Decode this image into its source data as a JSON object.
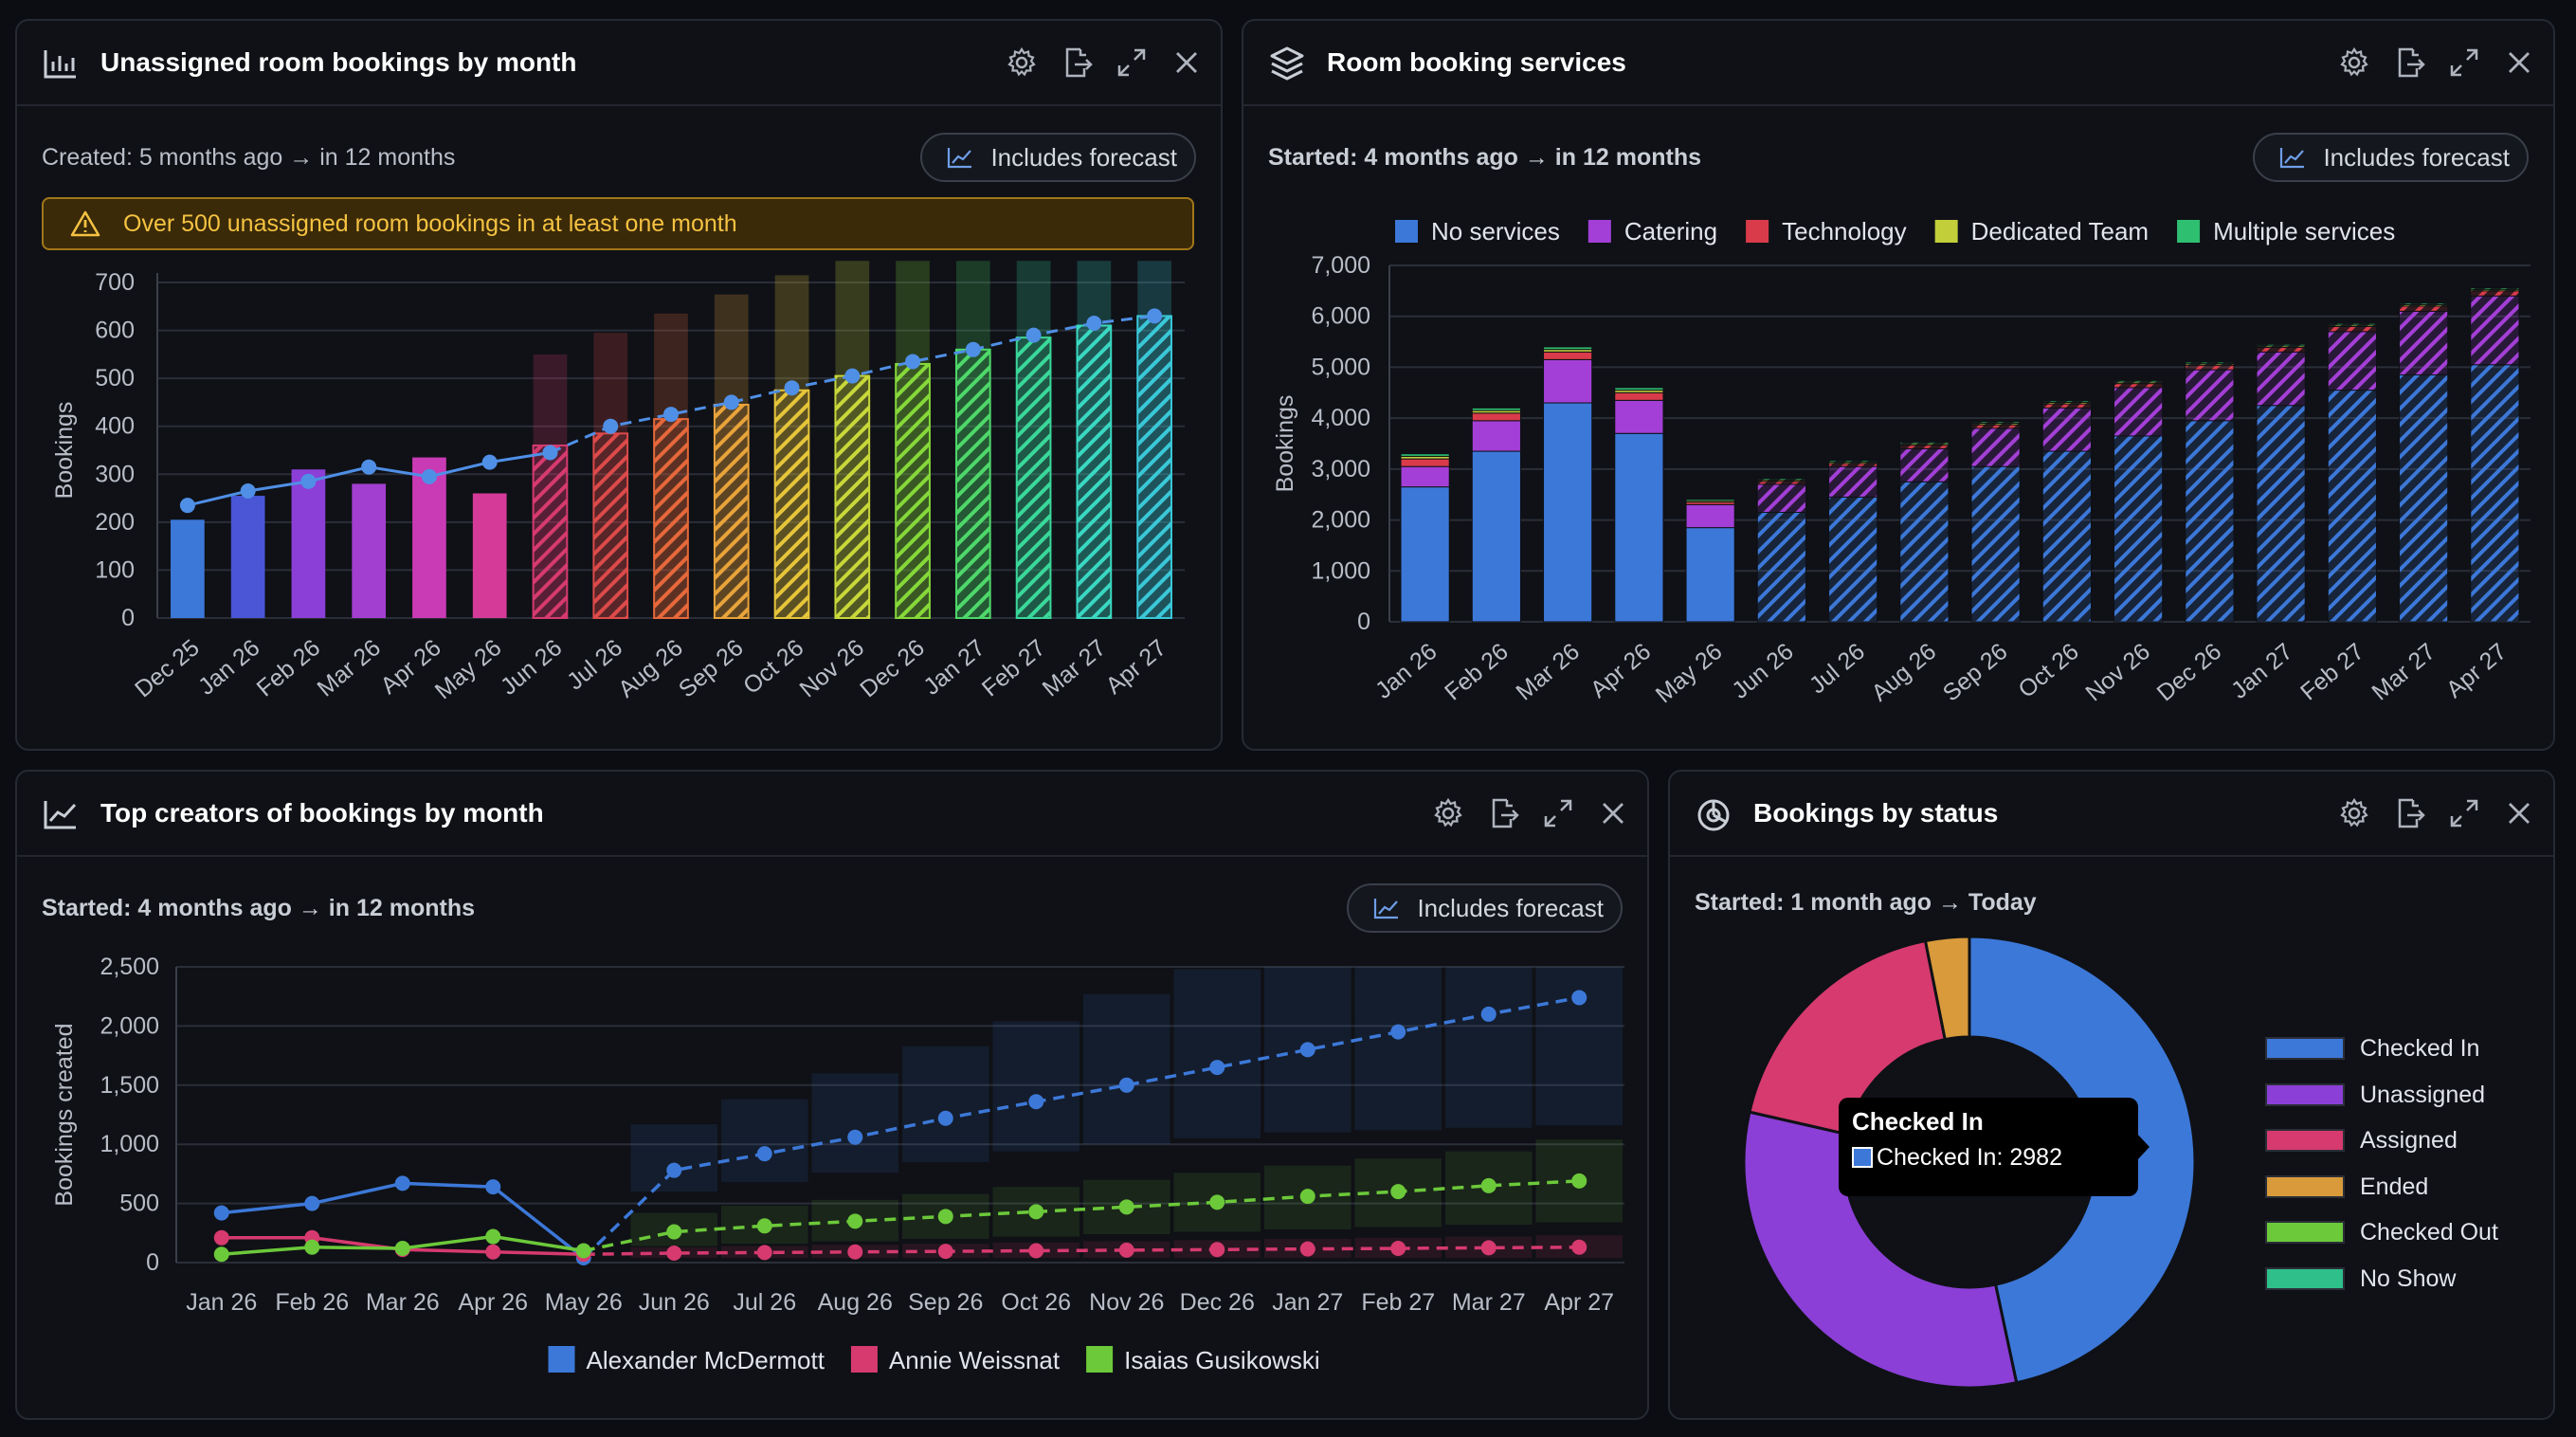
{
  "colors": {
    "panel": "#0f1116",
    "grid": "#2a2e38",
    "axis": "#b8bdc7",
    "forecast_line": "#4f8fe6",
    "warning_text": "#f5c242"
  },
  "icons": {
    "panel_actions": [
      "gear-icon",
      "export-icon",
      "expand-icon",
      "close-icon"
    ],
    "badge": "trend-line-icon",
    "warning": "warning-triangle-icon"
  },
  "panels": {
    "unassigned": {
      "title": "Unassigned room bookings by month",
      "subtitle": "Created: 5 months ago → in 12 months",
      "badge": "Includes forecast",
      "warning": "Over 500 unassigned room bookings in at least one month"
    },
    "services": {
      "title": "Room booking services",
      "subtitle": "Started: 4 months ago → in 12 months",
      "badge": "Includes forecast"
    },
    "creators": {
      "title": "Top creators of bookings by month",
      "subtitle": "Started: 4 months ago → in 12 months",
      "badge": "Includes forecast"
    },
    "status": {
      "title": "Bookings by status",
      "subtitle": "Started: 1 month ago → Today",
      "tooltip": {
        "title": "Checked In",
        "body": "Checked In: 2982"
      }
    }
  },
  "chart_data": [
    {
      "id": "unassigned",
      "type": "bar",
      "ylabel": "Bookings",
      "ylim": [
        0,
        700
      ],
      "yticks": [
        0,
        100,
        200,
        300,
        400,
        500,
        600,
        700
      ],
      "yticks_text": [
        "0",
        "100",
        "200",
        "300",
        "400",
        "500",
        "600",
        "700"
      ],
      "categories": [
        "Dec 25",
        "Jan 26",
        "Feb 26",
        "Mar 26",
        "Apr 26",
        "May 26",
        "Jun 26",
        "Jul 26",
        "Aug 26",
        "Sep 26",
        "Oct 26",
        "Nov 26",
        "Dec 26",
        "Jan 27",
        "Feb 27",
        "Mar 27",
        "Apr 27"
      ],
      "values": [
        205,
        255,
        310,
        280,
        335,
        260,
        360,
        385,
        415,
        445,
        475,
        505,
        530,
        560,
        585,
        610,
        630
      ],
      "forecast_from_index": 6,
      "forecast_upper": [
        null,
        null,
        null,
        null,
        null,
        null,
        550,
        595,
        635,
        675,
        715,
        745,
        745,
        745,
        745,
        745,
        745
      ],
      "trend": [
        235,
        265,
        285,
        315,
        295,
        325,
        345,
        400,
        425,
        450,
        480,
        505,
        535,
        560,
        590,
        615,
        630
      ],
      "bar_colors": [
        "#3c78d8",
        "#4a56d6",
        "#8b3fd6",
        "#a23fd0",
        "#c93ab5",
        "#d63a98",
        "#d63a6e",
        "#dc4a4a",
        "#e6683a",
        "#e8a33a",
        "#e6c53a",
        "#c8d83a",
        "#86d83a",
        "#4ed86a",
        "#3ad89a",
        "#3ad8c2",
        "#3ac8d8"
      ]
    },
    {
      "id": "services",
      "type": "bar",
      "stacked": true,
      "ylabel": "Bookings",
      "ylim": [
        0,
        7000
      ],
      "yticks": [
        0,
        1000,
        2000,
        3000,
        4000,
        5000,
        6000,
        7000
      ],
      "yticks_text": [
        "0",
        "1,000",
        "2,000",
        "3,000",
        "4,000",
        "5,000",
        "6,000",
        "7,000"
      ],
      "legend_position": "top",
      "categories": [
        "Jan 26",
        "Feb 26",
        "Mar 26",
        "Apr 26",
        "May 26",
        "Jun 26",
        "Jul 26",
        "Aug 26",
        "Sep 26",
        "Oct 26",
        "Nov 26",
        "Dec 26",
        "Jan 27",
        "Feb 27",
        "Mar 27",
        "Apr 27"
      ],
      "forecast_from_index": 5,
      "series": [
        {
          "name": "No services",
          "color": "#3c78d8",
          "values": [
            2650,
            3350,
            4300,
            3700,
            1850,
            2150,
            2450,
            2750,
            3050,
            3350,
            3650,
            3950,
            4250,
            4550,
            4850,
            5050
          ]
        },
        {
          "name": "Catering",
          "color": "#a33fd6",
          "values": [
            400,
            600,
            850,
            650,
            450,
            550,
            600,
            650,
            750,
            850,
            950,
            1000,
            1050,
            1150,
            1250,
            1350
          ]
        },
        {
          "name": "Technology",
          "color": "#d93b4a",
          "values": [
            150,
            150,
            150,
            150,
            50,
            60,
            60,
            70,
            70,
            80,
            80,
            90,
            90,
            100,
            100,
            100
          ]
        },
        {
          "name": "Dedicated Team",
          "color": "#c2cf3a",
          "values": [
            50,
            50,
            50,
            50,
            30,
            30,
            30,
            30,
            30,
            30,
            30,
            30,
            30,
            30,
            30,
            30
          ]
        },
        {
          "name": "Multiple services",
          "color": "#2fbf71",
          "values": [
            50,
            50,
            50,
            50,
            30,
            30,
            30,
            30,
            30,
            30,
            30,
            30,
            30,
            30,
            30,
            30
          ]
        }
      ]
    },
    {
      "id": "creators",
      "type": "line",
      "ylabel": "Bookings created",
      "ylim": [
        0,
        2500
      ],
      "yticks": [
        0,
        500,
        1000,
        1500,
        2000,
        2500
      ],
      "yticks_text": [
        "0",
        "500",
        "1,000",
        "1,500",
        "2,000",
        "2,500"
      ],
      "legend_position": "bottom",
      "categories": [
        "Jan 26",
        "Feb 26",
        "Mar 26",
        "Apr 26",
        "May 26",
        "Jun 26",
        "Jul 26",
        "Aug 26",
        "Sep 26",
        "Oct 26",
        "Nov 26",
        "Dec 26",
        "Jan 27",
        "Feb 27",
        "Mar 27",
        "Apr 27"
      ],
      "forecast_from_index": 4,
      "series": [
        {
          "name": "Alexander McDermott",
          "color": "#3c78d8",
          "values": [
            420,
            500,
            670,
            640,
            40,
            780,
            920,
            1060,
            1220,
            1360,
            1500,
            1650,
            1800,
            1950,
            2100,
            2240
          ],
          "band_low": [
            null,
            null,
            null,
            null,
            null,
            600,
            680,
            760,
            850,
            940,
            1000,
            1050,
            1100,
            1120,
            1140,
            1160
          ],
          "band_high": [
            null,
            null,
            null,
            null,
            null,
            1170,
            1380,
            1600,
            1830,
            2040,
            2270,
            2480,
            2500,
            2500,
            2500,
            2500
          ]
        },
        {
          "name": "Annie Weissnat",
          "color": "#d63a6e",
          "values": [
            210,
            210,
            110,
            90,
            70,
            80,
            85,
            90,
            95,
            100,
            105,
            110,
            115,
            120,
            125,
            130
          ],
          "band_low": [
            null,
            null,
            null,
            null,
            null,
            40,
            40,
            40,
            40,
            40,
            40,
            40,
            40,
            40,
            40,
            40
          ],
          "band_high": [
            null,
            null,
            null,
            null,
            null,
            130,
            140,
            150,
            160,
            170,
            180,
            190,
            200,
            210,
            220,
            230
          ]
        },
        {
          "name": "Isaias Gusikowski",
          "color": "#6cc93a",
          "values": [
            70,
            130,
            120,
            220,
            100,
            260,
            310,
            350,
            390,
            430,
            470,
            510,
            560,
            600,
            650,
            690
          ],
          "band_low": [
            null,
            null,
            null,
            null,
            null,
            140,
            160,
            180,
            200,
            220,
            240,
            260,
            280,
            300,
            320,
            340
          ],
          "band_high": [
            null,
            null,
            null,
            null,
            null,
            420,
            480,
            530,
            580,
            640,
            700,
            760,
            820,
            880,
            940,
            1040
          ]
        }
      ]
    },
    {
      "id": "status",
      "type": "pie",
      "donut": true,
      "legend_position": "right",
      "labels": [
        "Checked In",
        "Unassigned",
        "Assigned",
        "Ended",
        "Checked Out",
        "No Show"
      ],
      "values": [
        2982,
        2040,
        1170,
        200,
        0,
        0
      ],
      "colors": [
        "#3c78d8",
        "#8b3fd6",
        "#d63a6e",
        "#d89a3a",
        "#6cc93a",
        "#2fbf8a"
      ]
    }
  ]
}
